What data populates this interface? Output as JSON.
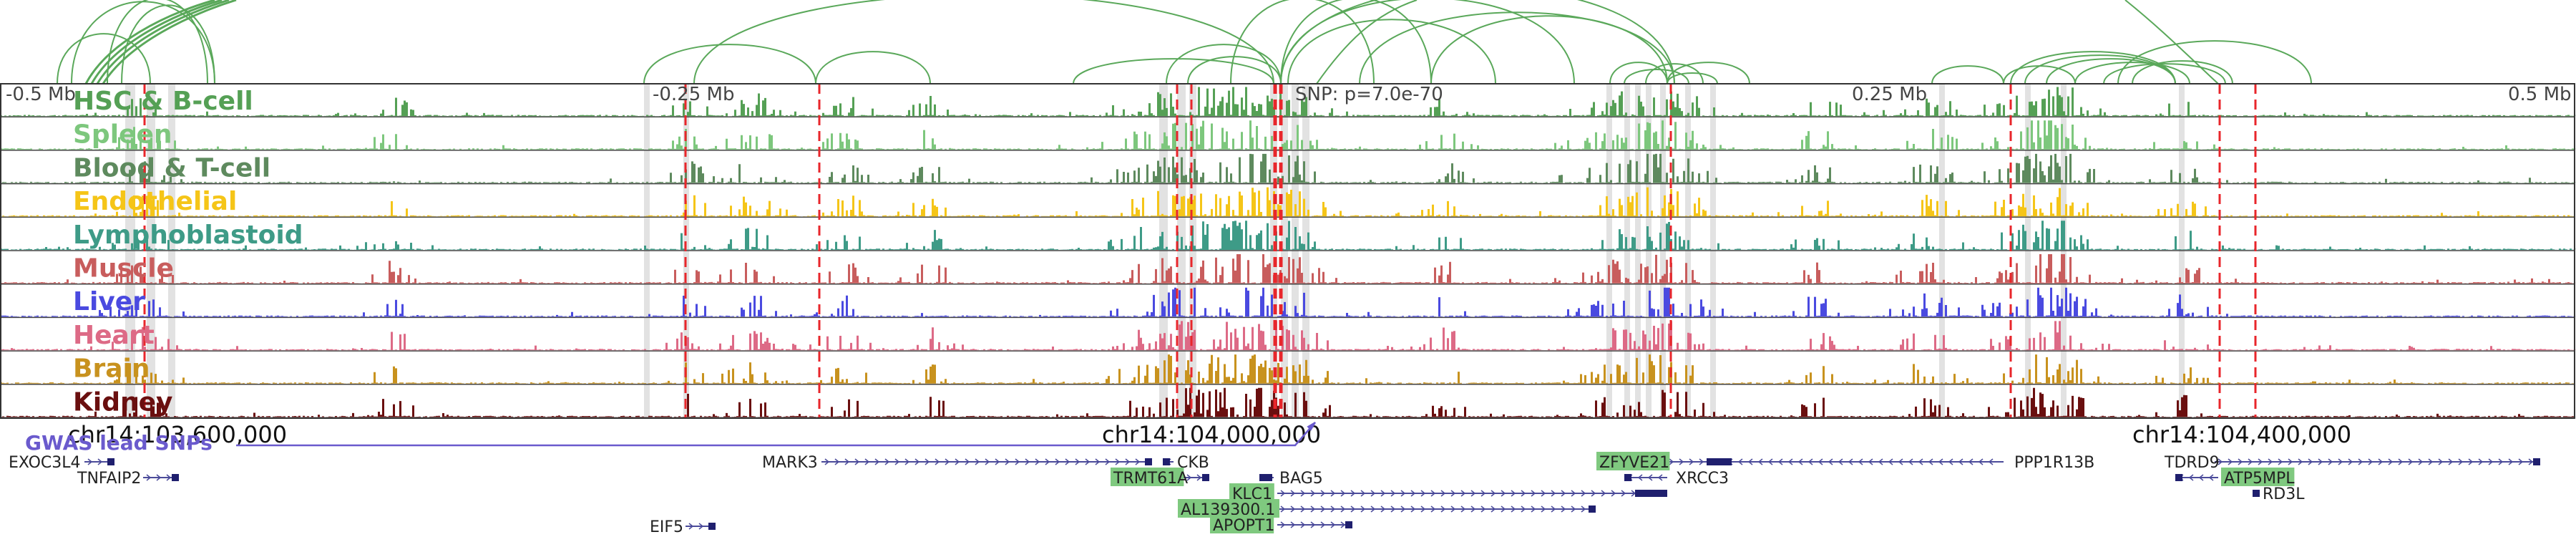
{
  "colors": {
    "arc": "#5aa85a",
    "highlight_band": "#cfcfcf",
    "gwas_line": "#e8262b",
    "gwas_title": "#6a5acd",
    "gene_body": "#1f1f6e",
    "gene_arrow": "#4b4b9a",
    "gene_highlight_bg": "#7fc97f",
    "gene_highlight_text": "#ffffff",
    "border": "#333333"
  },
  "scale": {
    "labels": [
      "-0.5 Mb",
      "-0.25 Mb",
      "0.25 Mb",
      "0.5 Mb"
    ],
    "snp_label": "SNP: p=7.0e-70"
  },
  "tracks": [
    {
      "name": "HSC & B-cell",
      "color": "#55a055"
    },
    {
      "name": "Spleen",
      "color": "#7dc77d"
    },
    {
      "name": "Blood & T-cell",
      "color": "#5e8a5e"
    },
    {
      "name": "Endothelial",
      "color": "#f5c518"
    },
    {
      "name": "Lymphoblastoid",
      "color": "#3e9b87"
    },
    {
      "name": "Muscle",
      "color": "#c85d5d"
    },
    {
      "name": "Liver",
      "color": "#4a4ae0"
    },
    {
      "name": "Heart",
      "color": "#dd6a86"
    },
    {
      "name": "Brain",
      "color": "#c8921e"
    },
    {
      "name": "Kidney",
      "color": "#6a0f0f"
    }
  ],
  "coordinates": [
    "chr14:103,600,000",
    "chr14:104,000,000",
    "chr14:104,400,000"
  ],
  "gwas": {
    "title": "GWAS lead SNPs"
  },
  "genes": [
    {
      "name": "EXOC3L4",
      "highlight": false
    },
    {
      "name": "TNFAIP2",
      "highlight": false
    },
    {
      "name": "EIF5",
      "highlight": false
    },
    {
      "name": "MARK3",
      "highlight": false
    },
    {
      "name": "CKB",
      "highlight": false
    },
    {
      "name": "TRMT61A",
      "highlight": true
    },
    {
      "name": "BAG5",
      "highlight": false
    },
    {
      "name": "KLC1",
      "highlight": true
    },
    {
      "name": "AL139300.1",
      "highlight": true
    },
    {
      "name": "APOPT1",
      "highlight": true
    },
    {
      "name": "ZFYVE21",
      "highlight": true
    },
    {
      "name": "XRCC3",
      "highlight": false
    },
    {
      "name": "PPP1R13B",
      "highlight": false
    },
    {
      "name": "TDRD9",
      "highlight": false
    },
    {
      "name": "ATP5MPL",
      "highlight": true
    },
    {
      "name": "RD3L",
      "highlight": false
    }
  ]
}
